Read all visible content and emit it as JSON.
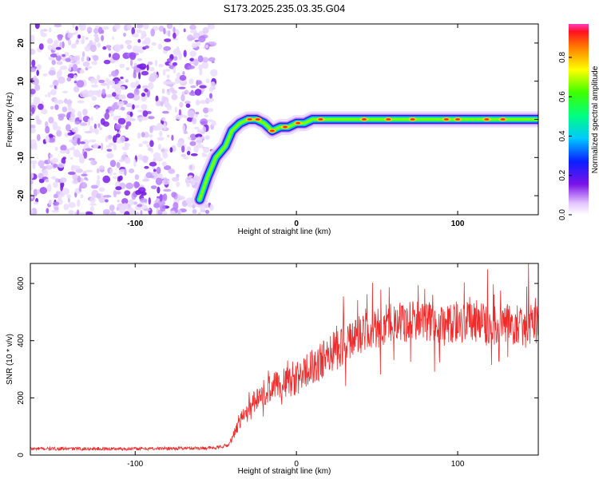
{
  "title": "S173.2025.235.03.35.G04",
  "chart_data": [
    {
      "type": "heatmap",
      "name": "spectrogram",
      "xlabel": "Height of straight line (km)",
      "ylabel": "Frequency (Hz)",
      "xlim": [
        -165,
        150
      ],
      "ylim": [
        -25,
        25
      ],
      "xticks": [
        -100,
        0,
        100
      ],
      "yticks": [
        -20,
        -10,
        0,
        10,
        20
      ],
      "colorbar": {
        "label": "Normalized spectral amplitude",
        "range": [
          0.0,
          0.97
        ],
        "ticks": [
          0.0,
          0.2,
          0.4,
          0.6,
          0.8
        ]
      },
      "noise_region_x": [
        -165,
        -55
      ],
      "ridge": [
        {
          "x": -60,
          "y": -21
        },
        {
          "x": -55,
          "y": -15
        },
        {
          "x": -50,
          "y": -10
        },
        {
          "x": -44,
          "y": -7
        },
        {
          "x": -40,
          "y": -3
        },
        {
          "x": -35,
          "y": -1
        },
        {
          "x": -30,
          "y": 0
        },
        {
          "x": -25,
          "y": 0
        },
        {
          "x": -20,
          "y": -1
        },
        {
          "x": -15,
          "y": -3
        },
        {
          "x": -10,
          "y": -2
        },
        {
          "x": -5,
          "y": -2
        },
        {
          "x": 0,
          "y": -1
        },
        {
          "x": 5,
          "y": -1
        },
        {
          "x": 10,
          "y": 0
        },
        {
          "x": 15,
          "y": 0
        },
        {
          "x": 30,
          "y": 0
        },
        {
          "x": 50,
          "y": 0
        },
        {
          "x": 75,
          "y": 0
        },
        {
          "x": 100,
          "y": 0
        },
        {
          "x": 125,
          "y": 0
        },
        {
          "x": 150,
          "y": 0
        }
      ]
    },
    {
      "type": "line",
      "name": "snr",
      "xlabel": "Height of straight line (km)",
      "ylabel": "SNR (10 * v/v)",
      "xlim": [
        -165,
        150
      ],
      "ylim": [
        0,
        670
      ],
      "xticks": [
        -100,
        0,
        100
      ],
      "yticks": [
        0,
        200,
        400,
        600
      ],
      "color": "#ee2a2a",
      "envelope": [
        {
          "x": -165,
          "y": 22
        },
        {
          "x": -100,
          "y": 22
        },
        {
          "x": -50,
          "y": 25
        },
        {
          "x": -42,
          "y": 35
        },
        {
          "x": -35,
          "y": 120
        },
        {
          "x": -30,
          "y": 150
        },
        {
          "x": -25,
          "y": 200
        },
        {
          "x": -15,
          "y": 235
        },
        {
          "x": -5,
          "y": 255
        },
        {
          "x": 5,
          "y": 285
        },
        {
          "x": 15,
          "y": 325
        },
        {
          "x": 25,
          "y": 370
        },
        {
          "x": 35,
          "y": 410
        },
        {
          "x": 45,
          "y": 435
        },
        {
          "x": 55,
          "y": 455
        },
        {
          "x": 70,
          "y": 465
        },
        {
          "x": 90,
          "y": 460
        },
        {
          "x": 110,
          "y": 460
        },
        {
          "x": 130,
          "y": 450
        },
        {
          "x": 150,
          "y": 460
        }
      ]
    }
  ]
}
